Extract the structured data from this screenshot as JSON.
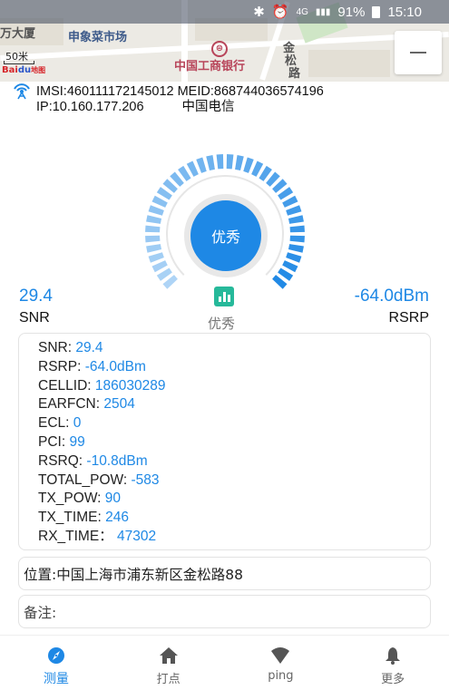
{
  "status_bar": {
    "network_small": "4G",
    "network_small2": "4G",
    "battery_percent": "91%",
    "time": "15:10",
    "icons": [
      "bluetooth-icon",
      "alarm-icon",
      "signal-icon",
      "battery-icon"
    ]
  },
  "map": {
    "labels": [
      "万大厦",
      "申象菜市场",
      "中国工商银行",
      "金",
      "松",
      "路"
    ],
    "scale_text": "50米",
    "logo_text_red": "Bai",
    "logo_text_blue": "du",
    "logo_suffix": "地图",
    "bank_icon": "⊜",
    "zoom_out_icon": "minus-icon"
  },
  "info": {
    "imsi_meid": "IMSI:460111172145012 MEID:868744036574196",
    "ip": "IP:10.160.177.206",
    "carrier": "中国电信"
  },
  "gauge": {
    "center_label": "优秀",
    "level_fraction": 1.0,
    "colors": {
      "active": "#1e88e5",
      "inactive": "#e0e0e0"
    }
  },
  "metrics": {
    "snr_value": "29.4",
    "snr_label": "SNR",
    "quality_label": "优秀",
    "rsrp_value": "-64.0dBm",
    "rsrp_label": "RSRP"
  },
  "details": [
    {
      "key": "SNR: ",
      "value": "29.4"
    },
    {
      "key": "RSRP: ",
      "value": "-64.0dBm"
    },
    {
      "key": "CELLID: ",
      "value": "186030289"
    },
    {
      "key": "EARFCN: ",
      "value": "2504"
    },
    {
      "key": "ECL: ",
      "value": "0"
    },
    {
      "key": "PCI: ",
      "value": "99"
    },
    {
      "key": "RSRQ: ",
      "value": "-10.8dBm"
    },
    {
      "key": "TOTAL_POW: ",
      "value": "-583"
    },
    {
      "key": "TX_POW: ",
      "value": "90"
    },
    {
      "key": "TX_TIME: ",
      "value": "246"
    },
    {
      "key": "RX_TIME：",
      "value": " 47302"
    }
  ],
  "location": {
    "label": "位置:",
    "value": " 中国上海市浦东新区金松路88"
  },
  "remark": {
    "label": "备注:",
    "value": ""
  },
  "nav": [
    {
      "label": "测量",
      "icon": "compass-icon",
      "active": true
    },
    {
      "label": "打点",
      "icon": "home-icon",
      "active": false
    },
    {
      "label": "ping",
      "icon": "wifi-icon",
      "active": false
    },
    {
      "label": "更多",
      "icon": "bell-icon",
      "active": false
    }
  ],
  "accent_color": "#1e88e5"
}
